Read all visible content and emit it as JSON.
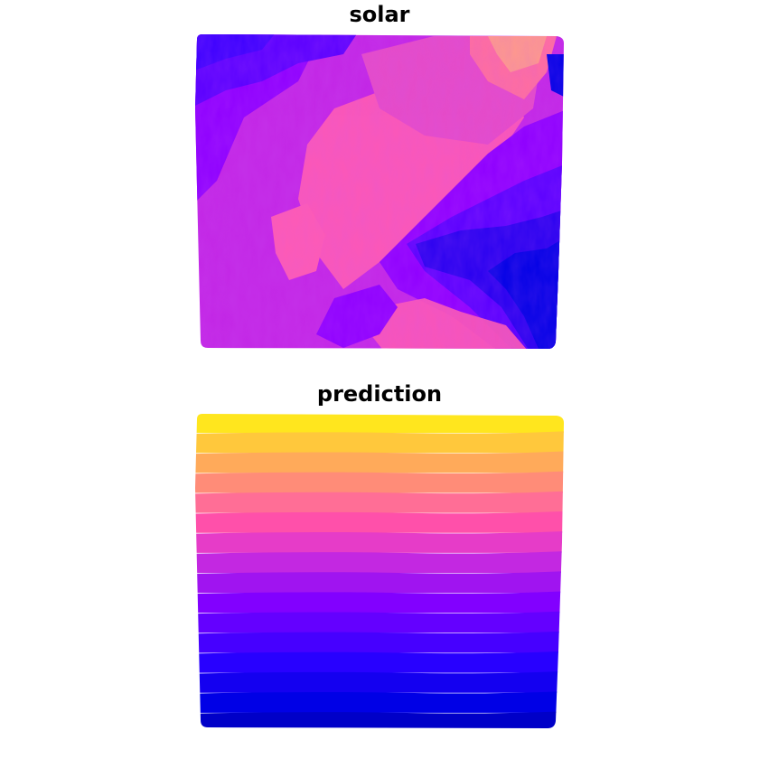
{
  "panels": [
    {
      "title": "solar",
      "type": "raster-map",
      "palette": [
        "#0000e6",
        "#5a00ff",
        "#8f00ff",
        "#c327e6",
        "#ff5ab4",
        "#ff8c96"
      ]
    },
    {
      "title": "prediction",
      "type": "raster-map",
      "bands": [
        "#ffe61e",
        "#ffc83c",
        "#ffaa5a",
        "#ff8c78",
        "#ff6e96",
        "#ff50aa",
        "#e63cc8",
        "#c328e1",
        "#a014f0",
        "#8200ff",
        "#6400ff",
        "#4600ff",
        "#2800ff",
        "#1400f0",
        "#0000e6",
        "#0000c8"
      ]
    }
  ]
}
